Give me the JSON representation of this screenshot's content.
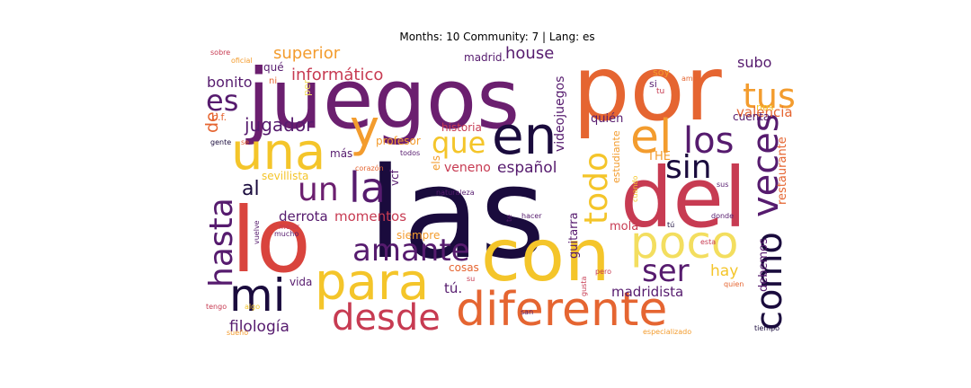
{
  "title": "Months: 10 Community: 7 | Lang: es",
  "colors": {
    "darkest": "#1a0b3d",
    "dark_purple": "#561b6e",
    "purple": "#6b1f6f",
    "crimson": "#c73b52",
    "red": "#d9443d",
    "orange": "#e56531",
    "amber": "#f39c2e",
    "yellow": "#f4c52a",
    "pale_yellow": "#f3de5f"
  },
  "words": [
    {
      "text": "juegos",
      "color": "#6b1f6f"
    },
    {
      "text": "por",
      "color": "#e56531"
    },
    {
      "text": "las",
      "color": "#1a0b3d"
    },
    {
      "text": "con",
      "color": "#f4c52a"
    },
    {
      "text": "del",
      "color": "#c73b52"
    },
    {
      "text": "lo",
      "color": "#d9443d"
    },
    {
      "text": "una",
      "color": "#f4c52a"
    },
    {
      "text": "en",
      "color": "#1a0b3d"
    },
    {
      "text": "y",
      "color": "#f39c2e"
    },
    {
      "text": "diferente",
      "color": "#e56531"
    },
    {
      "text": "para",
      "color": "#f4c52a"
    },
    {
      "text": "mi",
      "color": "#1a0b3d"
    },
    {
      "text": "el",
      "color": "#f39c2e"
    },
    {
      "text": "los",
      "color": "#561b6e"
    },
    {
      "text": "tus",
      "color": "#f39c2e"
    },
    {
      "text": "es",
      "color": "#561b6e"
    },
    {
      "text": "que",
      "color": "#f4c52a"
    },
    {
      "text": "la",
      "color": "#561b6e"
    },
    {
      "text": "un",
      "color": "#6b1f6f"
    },
    {
      "text": "desde",
      "color": "#c73b52"
    },
    {
      "text": "amante",
      "color": "#561b6e"
    },
    {
      "text": "poco",
      "color": "#f3de5f"
    },
    {
      "text": "sin",
      "color": "#1a0b3d"
    },
    {
      "text": "hasta",
      "color": "#561b6e"
    },
    {
      "text": "todo",
      "color": "#f4c52a"
    },
    {
      "text": "veces",
      "color": "#561b6e"
    },
    {
      "text": "como",
      "color": "#1a0b3d"
    },
    {
      "text": "ser",
      "color": "#561b6e"
    },
    {
      "text": "al",
      "color": "#1a0b3d"
    },
    {
      "text": "jugador",
      "color": "#561b6e"
    },
    {
      "text": "superior",
      "color": "#f39c2e"
    },
    {
      "text": "informático",
      "color": "#c73b52"
    },
    {
      "text": "house",
      "color": "#561b6e"
    },
    {
      "text": "bonito",
      "color": "#561b6e"
    },
    {
      "text": "subo",
      "color": "#561b6e"
    },
    {
      "text": "valencia",
      "color": "#e56531"
    },
    {
      "text": "filología",
      "color": "#561b6e"
    },
    {
      "text": "hay",
      "color": "#f4c52a"
    },
    {
      "text": "madridista",
      "color": "#561b6e"
    },
    {
      "text": "momentos",
      "color": "#c73b52"
    },
    {
      "text": "derrota",
      "color": "#561b6e"
    },
    {
      "text": "español",
      "color": "#561b6e"
    },
    {
      "text": "restaurante",
      "color": "#e56531"
    },
    {
      "text": "videojuegos",
      "color": "#561b6e"
    },
    {
      "text": "guitarra",
      "color": "#561b6e"
    },
    {
      "text": "veneno",
      "color": "#c73b52"
    },
    {
      "text": "debemos",
      "color": "#561b6e"
    },
    {
      "text": "de",
      "color": "#e56531"
    },
    {
      "text": "tú.",
      "color": "#561b6e"
    },
    {
      "text": "vida",
      "color": "#561b6e"
    },
    {
      "text": "cosas",
      "color": "#e56531"
    },
    {
      "text": "quién",
      "color": "#561b6e"
    },
    {
      "text": "mola",
      "color": "#c73b52"
    },
    {
      "text": "siempre",
      "color": "#f39c2e"
    },
    {
      "text": "madrid.",
      "color": "#561b6e"
    },
    {
      "text": "historia",
      "color": "#c73b52"
    },
    {
      "text": "profesor",
      "color": "#f39c2e"
    },
    {
      "text": "THE",
      "color": "#f39c2e"
    },
    {
      "text": "estudiante",
      "color": "#f39c2e"
    },
    {
      "text": "sevillista",
      "color": "#f4c52a"
    },
    {
      "text": "vcf",
      "color": "#561b6e"
    },
    {
      "text": "els",
      "color": "#f39c2e"
    },
    {
      "text": "más",
      "color": "#561b6e"
    },
    {
      "text": "qué",
      "color": "#561b6e"
    },
    {
      "text": "c.f.",
      "color": "#e56531"
    },
    {
      "text": "cuenta",
      "color": "#561b6e"
    },
    {
      "text": "soy",
      "color": "#f39c2e"
    },
    {
      "text": "nos",
      "color": "#f4c52a"
    },
    {
      "text": "si",
      "color": "#561b6e"
    },
    {
      "text": "tu",
      "color": "#c73b52"
    },
    {
      "text": "ni",
      "color": "#e56531"
    },
    {
      "text": "per",
      "color": "#f3de5f"
    },
    {
      "text": "sobre",
      "color": "#c73b52"
    },
    {
      "text": "oficial",
      "color": "#f39c2e"
    },
    {
      "text": "amor",
      "color": "#e56531"
    },
    {
      "text": "gente",
      "color": "#1a0b3d"
    },
    {
      "text": "se",
      "color": "#e56531"
    },
    {
      "text": "corazón",
      "color": "#e56531"
    },
    {
      "text": "todos",
      "color": "#561b6e"
    },
    {
      "text": "naturaleza",
      "color": "#561b6e"
    },
    {
      "text": "cuando",
      "color": "#f4c52a"
    },
    {
      "text": "sus",
      "color": "#561b6e"
    },
    {
      "text": "hacer",
      "color": "#561b6e"
    },
    {
      "text": "te",
      "color": "#561b6e"
    },
    {
      "text": "tú",
      "color": "#1a0b3d"
    },
    {
      "text": "donde",
      "color": "#561b6e"
    },
    {
      "text": "esta",
      "color": "#c73b52"
    },
    {
      "text": "mejor",
      "color": "#c73b52"
    },
    {
      "text": "mucho",
      "color": "#561b6e"
    },
    {
      "text": "vuelve",
      "color": "#561b6e"
    },
    {
      "text": "tengo",
      "color": "#c73b52"
    },
    {
      "text": "algo",
      "color": "#f4c52a"
    },
    {
      "text": "su",
      "color": "#c73b52"
    },
    {
      "text": "san",
      "color": "#561b6e"
    },
    {
      "text": "pero",
      "color": "#c73b52"
    },
    {
      "text": "gusta",
      "color": "#c73b52"
    },
    {
      "text": "quien",
      "color": "#e56531"
    },
    {
      "text": "sueño",
      "color": "#f39c2e"
    },
    {
      "text": "especializado",
      "color": "#f39c2e"
    },
    {
      "text": "tiempo",
      "color": "#1a0b3d"
    }
  ]
}
